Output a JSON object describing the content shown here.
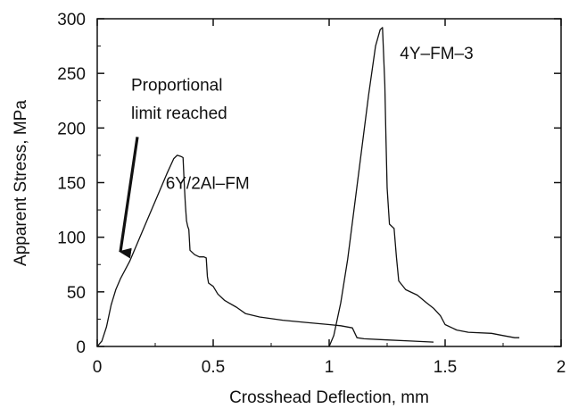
{
  "chart_data": {
    "type": "line",
    "title": "",
    "xlabel": "Crosshead Deflection, mm",
    "ylabel": "Apparent Stress, MPa",
    "xlim": [
      0,
      2
    ],
    "ylim": [
      0,
      300
    ],
    "xticks": [
      "0",
      "0.5",
      "1",
      "1.5",
      "2"
    ],
    "yticks": [
      "0",
      "50",
      "100",
      "150",
      "200",
      "250",
      "300"
    ],
    "grid": false,
    "legend": "none",
    "series": [
      {
        "name": "6Y/2Al–FM",
        "points": [
          [
            0.0,
            0
          ],
          [
            0.02,
            5
          ],
          [
            0.04,
            18
          ],
          [
            0.06,
            38
          ],
          [
            0.08,
            52
          ],
          [
            0.1,
            62
          ],
          [
            0.14,
            78
          ],
          [
            0.18,
            98
          ],
          [
            0.22,
            118
          ],
          [
            0.26,
            138
          ],
          [
            0.3,
            158
          ],
          [
            0.33,
            172
          ],
          [
            0.345,
            175
          ],
          [
            0.36,
            174
          ],
          [
            0.37,
            173
          ],
          [
            0.375,
            150
          ],
          [
            0.38,
            130
          ],
          [
            0.385,
            115
          ],
          [
            0.39,
            110
          ],
          [
            0.395,
            107
          ],
          [
            0.4,
            88
          ],
          [
            0.42,
            84
          ],
          [
            0.44,
            82
          ],
          [
            0.46,
            82
          ],
          [
            0.47,
            81
          ],
          [
            0.475,
            64
          ],
          [
            0.48,
            58
          ],
          [
            0.5,
            55
          ],
          [
            0.52,
            48
          ],
          [
            0.55,
            42
          ],
          [
            0.6,
            36
          ],
          [
            0.64,
            30
          ],
          [
            0.7,
            27
          ],
          [
            0.8,
            24
          ],
          [
            0.9,
            22
          ],
          [
            1.0,
            20
          ],
          [
            1.05,
            19
          ],
          [
            1.1,
            17
          ],
          [
            1.12,
            8
          ],
          [
            1.15,
            7
          ],
          [
            1.25,
            6
          ],
          [
            1.35,
            5
          ],
          [
            1.45,
            4
          ]
        ]
      },
      {
        "name": "4Y–FM–3",
        "points": [
          [
            1.0,
            0
          ],
          [
            1.02,
            10
          ],
          [
            1.05,
            40
          ],
          [
            1.08,
            80
          ],
          [
            1.11,
            130
          ],
          [
            1.14,
            180
          ],
          [
            1.17,
            230
          ],
          [
            1.2,
            275
          ],
          [
            1.22,
            290
          ],
          [
            1.23,
            292
          ],
          [
            1.24,
            240
          ],
          [
            1.245,
            190
          ],
          [
            1.25,
            145
          ],
          [
            1.26,
            112
          ],
          [
            1.28,
            108
          ],
          [
            1.29,
            82
          ],
          [
            1.3,
            60
          ],
          [
            1.33,
            52
          ],
          [
            1.38,
            47
          ],
          [
            1.42,
            40
          ],
          [
            1.45,
            35
          ],
          [
            1.48,
            28
          ],
          [
            1.5,
            20
          ],
          [
            1.55,
            15
          ],
          [
            1.6,
            13
          ],
          [
            1.7,
            12
          ],
          [
            1.75,
            10
          ],
          [
            1.8,
            8
          ],
          [
            1.82,
            8
          ]
        ]
      }
    ],
    "annotations": [
      {
        "text": "Proportional",
        "x": 0.1,
        "y": 240
      },
      {
        "text": "limit reached",
        "x": 0.1,
        "y": 214
      },
      {
        "text": "6Y/2Al–FM",
        "x": 0.295,
        "y": 150
      },
      {
        "text": "4Y–FM–3",
        "x": 1.305,
        "y": 269
      }
    ],
    "arrow": {
      "from": [
        0.2,
        200
      ],
      "to": [
        0.1,
        77
      ]
    }
  }
}
